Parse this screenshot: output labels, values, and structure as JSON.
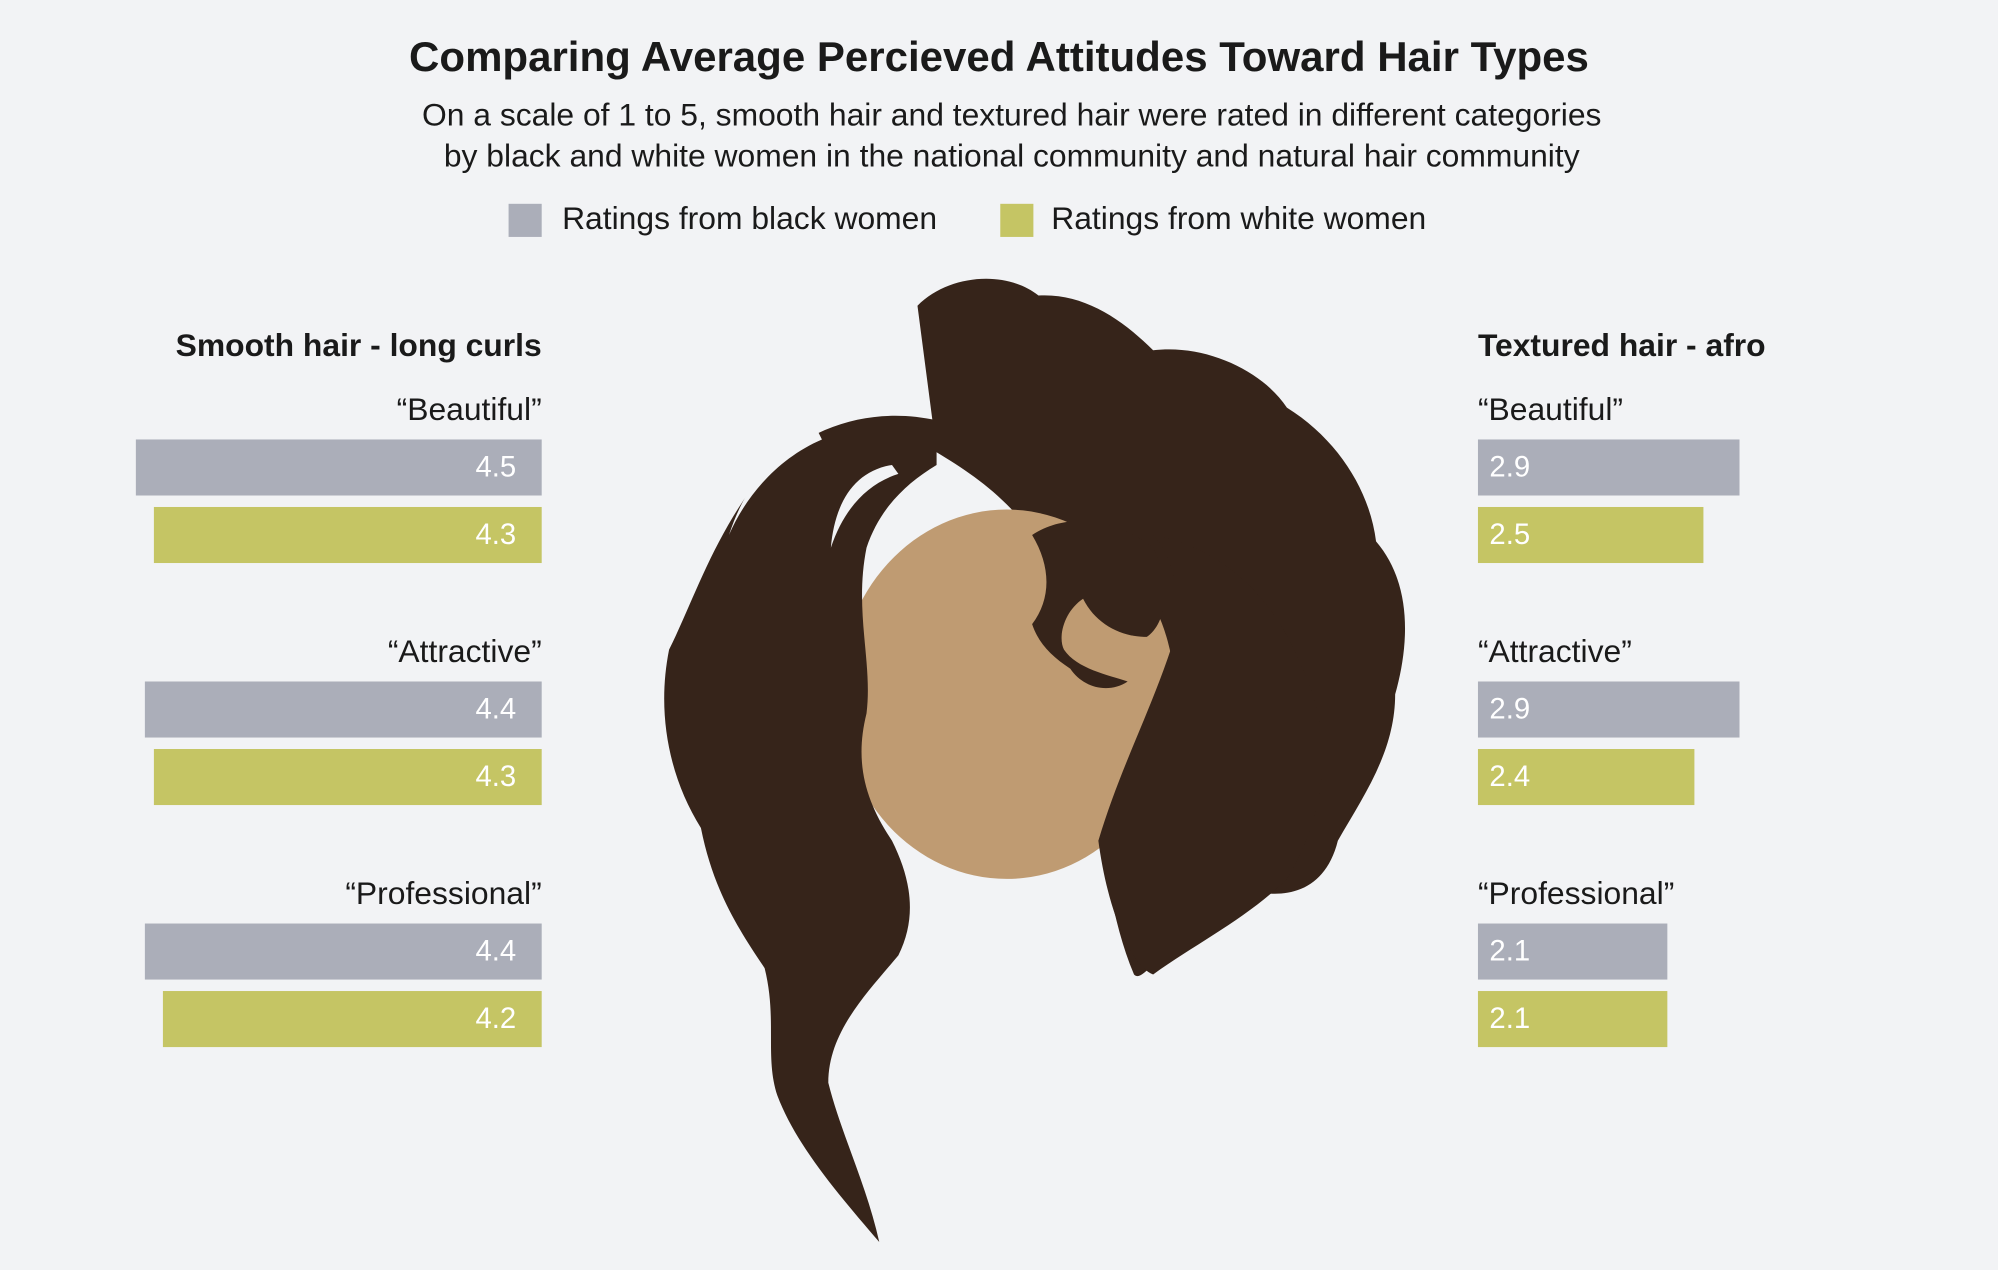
{
  "chart_data": {
    "type": "bar",
    "orientation": "horizontal",
    "title": "Comparing Average Percieved Attitudes Toward Hair Types",
    "subtitle": [
      "On a scale of 1 to 5, smooth hair and textured hair were rated in different categories",
      "by black and white women in the national community and natural hair community"
    ],
    "legend": [
      {
        "name": "Ratings from black women",
        "color": "#abaeb9"
      },
      {
        "name": "Ratings from white women",
        "color": "#c5c564"
      }
    ],
    "panels": [
      {
        "title": "Smooth hair - long curls",
        "categories": [
          "“Beautiful”",
          "“Attractive”",
          "“Professional”"
        ],
        "xlim": [
          0,
          5
        ],
        "series": [
          {
            "values": [
              4.5,
              4.4,
              4.4
            ]
          },
          {
            "values": [
              4.3,
              4.3,
              4.2
            ]
          }
        ]
      },
      {
        "title": "Textured hair - afro",
        "categories": [
          "“Beautiful”",
          "“Attractive”",
          "“Professional”"
        ],
        "xlim": [
          0,
          5
        ],
        "series": [
          {
            "values": [
              2.9,
              2.9,
              2.1
            ]
          },
          {
            "values": [
              2.5,
              2.4,
              2.1
            ]
          }
        ]
      }
    ]
  }
}
